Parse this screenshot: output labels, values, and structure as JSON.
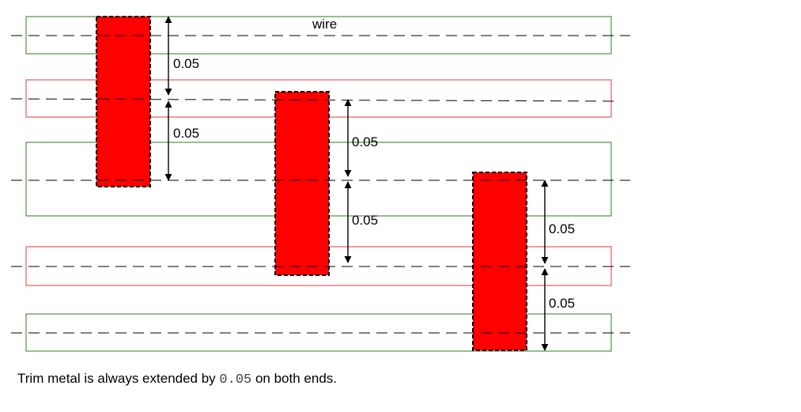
{
  "colors": {
    "wire_green": "#2e7d1f",
    "wire_red": "#e53935",
    "trim_fill": "#ff0000",
    "dash": "#000000"
  },
  "wire_label": "wire",
  "dimension_label": "0.05",
  "caption": {
    "before": "Trim metal is always extended by",
    "code": "0.05",
    "after": "on both ends."
  }
}
